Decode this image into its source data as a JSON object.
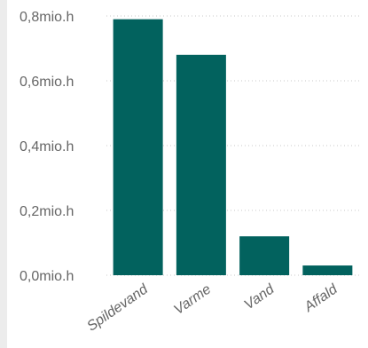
{
  "chart_data": {
    "type": "bar",
    "categories": [
      "Spildevand",
      "Varme",
      "Vand",
      "Affald"
    ],
    "values": [
      0.79,
      0.68,
      0.12,
      0.03
    ],
    "ylim": [
      0,
      0.8
    ],
    "yticks": [
      0,
      0.2,
      0.4,
      0.6,
      0.8
    ],
    "ytick_labels": [
      "0,0mio.h",
      "0,2mio.h",
      "0,4mio.h",
      "0,6mio.h",
      "0,8mio.h"
    ],
    "grid": true,
    "bar_color": "#02625e"
  }
}
